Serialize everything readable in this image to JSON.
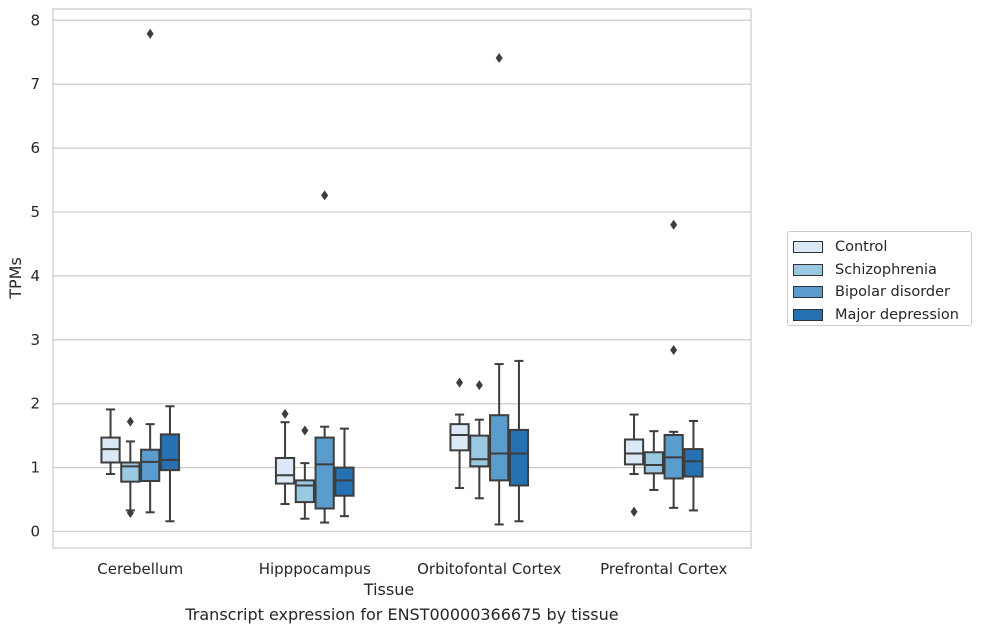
{
  "chart_data": {
    "type": "boxplot",
    "title": "",
    "caption": "Transcript expression for ENST00000366675 by tissue",
    "xlabel": "Tissue",
    "ylabel": "TPMs",
    "ylim": [
      -0.25,
      8.2
    ],
    "yticks": [
      0,
      1,
      2,
      3,
      4,
      5,
      6,
      7,
      8
    ],
    "grid": "horizontal",
    "legend_position": "right",
    "categories": [
      "Cerebellum",
      "Hipppocampus",
      "Orbitofontal Cortex",
      "Prefrontal Cortex"
    ],
    "series": [
      {
        "name": "Control",
        "color": "#dbe9f6",
        "boxes": [
          {
            "whisker_low": 0.9,
            "q1": 1.08,
            "median": 1.29,
            "q3": 1.47,
            "whisker_high": 1.91,
            "outliers": []
          },
          {
            "whisker_low": 0.43,
            "q1": 0.75,
            "median": 0.88,
            "q3": 1.15,
            "whisker_high": 1.71,
            "outliers": [
              1.84
            ]
          },
          {
            "whisker_low": 0.68,
            "q1": 1.27,
            "median": 1.51,
            "q3": 1.68,
            "whisker_high": 1.83,
            "outliers": [
              2.33
            ]
          },
          {
            "whisker_low": 0.9,
            "q1": 1.05,
            "median": 1.22,
            "q3": 1.44,
            "whisker_high": 1.83,
            "outliers": [
              0.31
            ]
          }
        ]
      },
      {
        "name": "Schizophrenia",
        "color": "#9ac8e0",
        "boxes": [
          {
            "whisker_low": 0.33,
            "q1": 0.78,
            "median": 1.02,
            "q3": 1.08,
            "whisker_high": 1.41,
            "outliers": [
              1.72,
              0.29
            ]
          },
          {
            "whisker_low": 0.2,
            "q1": 0.46,
            "median": 0.72,
            "q3": 0.8,
            "whisker_high": 1.07,
            "outliers": [
              1.58
            ]
          },
          {
            "whisker_low": 0.52,
            "q1": 1.02,
            "median": 1.13,
            "q3": 1.5,
            "whisker_high": 1.75,
            "outliers": [
              2.29
            ]
          },
          {
            "whisker_low": 0.65,
            "q1": 0.91,
            "median": 1.04,
            "q3": 1.24,
            "whisker_high": 1.57,
            "outliers": []
          }
        ]
      },
      {
        "name": "Bipolar disorder",
        "color": "#5a9ccc",
        "boxes": [
          {
            "whisker_low": 0.3,
            "q1": 0.79,
            "median": 1.09,
            "q3": 1.28,
            "whisker_high": 1.68,
            "outliers": [
              7.79
            ]
          },
          {
            "whisker_low": 0.14,
            "q1": 0.36,
            "median": 1.05,
            "q3": 1.47,
            "whisker_high": 1.64,
            "outliers": [
              5.26
            ]
          },
          {
            "whisker_low": 0.11,
            "q1": 0.8,
            "median": 1.22,
            "q3": 1.82,
            "whisker_high": 2.62,
            "outliers": [
              7.41
            ]
          },
          {
            "whisker_low": 0.37,
            "q1": 0.83,
            "median": 1.16,
            "q3": 1.51,
            "whisker_high": 1.56,
            "outliers": [
              4.8,
              2.84
            ]
          }
        ]
      },
      {
        "name": "Major depression",
        "color": "#2671b4",
        "boxes": [
          {
            "whisker_low": 0.16,
            "q1": 0.96,
            "median": 1.12,
            "q3": 1.52,
            "whisker_high": 1.96,
            "outliers": []
          },
          {
            "whisker_low": 0.24,
            "q1": 0.56,
            "median": 0.8,
            "q3": 1.0,
            "whisker_high": 1.61,
            "outliers": []
          },
          {
            "whisker_low": 0.16,
            "q1": 0.72,
            "median": 1.22,
            "q3": 1.59,
            "whisker_high": 2.67,
            "outliers": []
          },
          {
            "whisker_low": 0.33,
            "q1": 0.86,
            "median": 1.1,
            "q3": 1.29,
            "whisker_high": 1.73,
            "outliers": []
          }
        ]
      }
    ]
  }
}
